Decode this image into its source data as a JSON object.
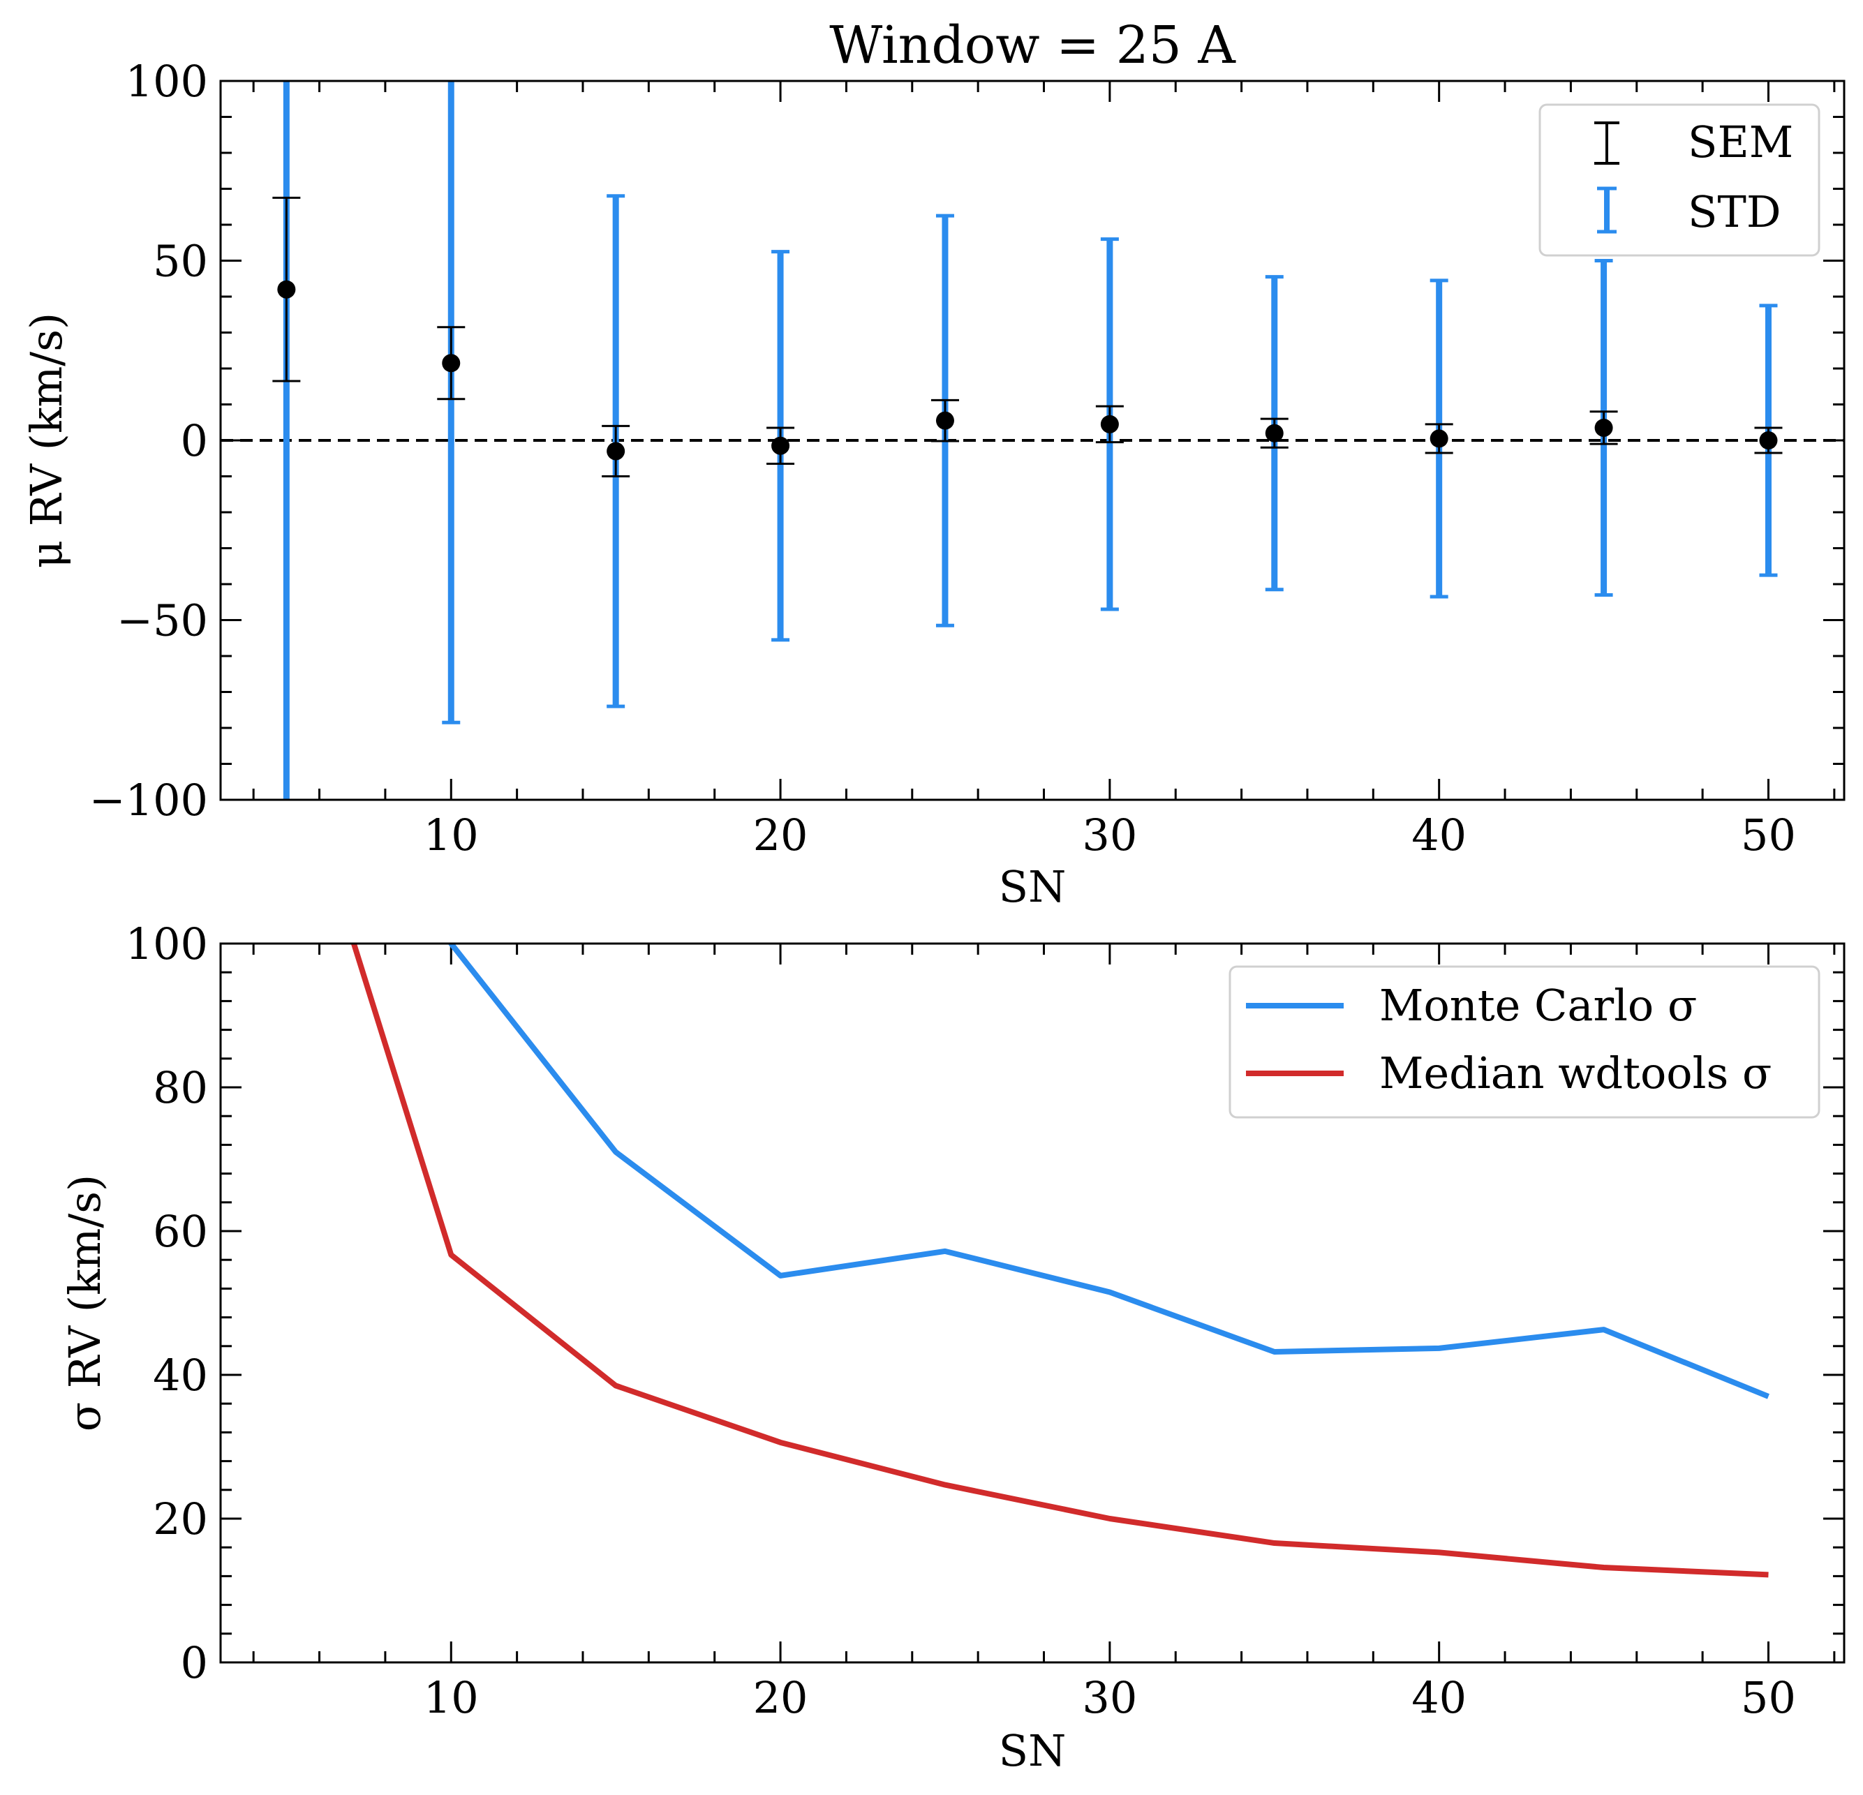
{
  "chart_data": [
    {
      "type": "scatter",
      "title": "Window = 25 A",
      "xlabel": "SN",
      "ylabel": "μ RV (km/s)",
      "xlim": [
        3,
        52.3
      ],
      "ylim": [
        -100,
        100
      ],
      "xticks": [
        10,
        20,
        30,
        40,
        50
      ],
      "yticks": [
        -100,
        -50,
        0,
        50,
        100
      ],
      "ytick_labels": [
        "−100",
        "−50",
        "0",
        "50",
        "100"
      ],
      "reference_line": 0,
      "legend_position": "top-right",
      "legend": [
        "SEM",
        "STD"
      ],
      "x": [
        5,
        10,
        15,
        20,
        25,
        30,
        35,
        40,
        45,
        50
      ],
      "mean": [
        42,
        21.5,
        -3,
        -1.5,
        5.5,
        4.5,
        2,
        0.5,
        3.5,
        0
      ],
      "sem": [
        25.5,
        10,
        7,
        5,
        5.7,
        5,
        4,
        4,
        4.5,
        3.5
      ],
      "std": [
        200,
        100,
        71,
        54,
        57,
        51.5,
        43.5,
        44,
        46.5,
        37.5
      ],
      "colors": {
        "points": "#000000",
        "sem": "#000000",
        "std": "#2b8cee"
      }
    },
    {
      "type": "line",
      "xlabel": "SN",
      "ylabel": "σ RV (km/s)",
      "xlim": [
        3,
        52.3
      ],
      "ylim": [
        0,
        100
      ],
      "xticks": [
        10,
        20,
        30,
        40,
        50
      ],
      "yticks": [
        0,
        20,
        40,
        60,
        80,
        100
      ],
      "legend_position": "top-right",
      "x": [
        5,
        10,
        15,
        20,
        25,
        30,
        35,
        40,
        45,
        50
      ],
      "series": [
        {
          "name": "Monte Carlo σ",
          "color": "#2b8cee",
          "values": [
            200,
            100,
            71,
            53.8,
            57.2,
            51.5,
            43.2,
            43.7,
            46.3,
            37
          ]
        },
        {
          "name": "Median wdtools σ",
          "color": "#d12b2b",
          "values": [
            130,
            56.7,
            38.5,
            30.6,
            24.7,
            20,
            16.6,
            15.3,
            13.2,
            12.2
          ]
        }
      ]
    }
  ]
}
